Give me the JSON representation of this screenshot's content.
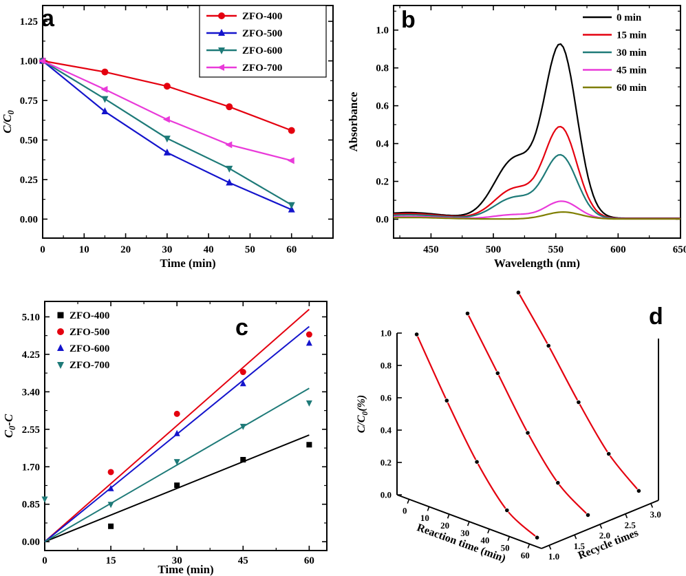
{
  "figure": {
    "background": "#ffffff",
    "description": "Four-panel photocatalytic degradation figure",
    "panel_labels": [
      "a",
      "b",
      "c",
      "d"
    ]
  },
  "chart_data": [
    {
      "panel": "a",
      "type": "line",
      "xlabel": "Time (min)",
      "ylabel": "C/C₀",
      "xlim": [
        0,
        70
      ],
      "ylim": [
        -0.12,
        1.35
      ],
      "xticks": [
        0,
        10,
        20,
        30,
        40,
        50,
        60
      ],
      "xtick_labels": [
        "0",
        "10",
        "20",
        "30",
        "40",
        "50",
        "60"
      ],
      "yticks": [
        0,
        0.25,
        0.5,
        0.75,
        1.0,
        1.25
      ],
      "ytick_labels": [
        "0.00",
        "0.25",
        "0.50",
        "0.75",
        "1.00",
        "1.25"
      ],
      "x": [
        0,
        15,
        30,
        45,
        60
      ],
      "legend_position": "top-right",
      "series": [
        {
          "name": "ZFO-400",
          "color": "#e4000f",
          "marker": "circle",
          "values": [
            1.0,
            0.93,
            0.84,
            0.71,
            0.56
          ]
        },
        {
          "name": "ZFO-500",
          "color": "#1414cc",
          "marker": "triangle-up",
          "values": [
            1.0,
            0.68,
            0.42,
            0.23,
            0.06
          ]
        },
        {
          "name": "ZFO-600",
          "color": "#1e7a78",
          "marker": "triangle-down",
          "values": [
            1.0,
            0.76,
            0.51,
            0.32,
            0.09
          ]
        },
        {
          "name": "ZFO-700",
          "color": "#e93ad9",
          "marker": "triangle-left",
          "values": [
            1.0,
            0.82,
            0.63,
            0.47,
            0.37
          ]
        }
      ]
    },
    {
      "panel": "b",
      "type": "line",
      "xlabel": "Wavelength (nm)",
      "ylabel": "Absorbance",
      "xlim": [
        420,
        650
      ],
      "ylim": [
        -0.1,
        1.13
      ],
      "xticks": [
        450,
        500,
        550,
        600,
        650
      ],
      "xtick_labels": [
        "450",
        "500",
        "550",
        "600",
        "650"
      ],
      "yticks": [
        0,
        0.2,
        0.4,
        0.6,
        0.8,
        1.0
      ],
      "ytick_labels": [
        "0.0",
        "0.2",
        "0.4",
        "0.6",
        "0.8",
        "1.0"
      ],
      "legend_position": "top-right",
      "peak_wavelength_nm": 554,
      "series": [
        {
          "name": "0 min",
          "color": "#000000",
          "baseline": 0.005,
          "peaks": [
            [
              554,
              0.9,
              13
            ],
            [
              517,
              0.31,
              16
            ],
            [
              432,
              0.03,
              26
            ]
          ]
        },
        {
          "name": "15 min",
          "color": "#e4000f",
          "baseline": 0.004,
          "peaks": [
            [
              554,
              0.475,
              13
            ],
            [
              517,
              0.155,
              16
            ],
            [
              432,
              0.025,
              26
            ]
          ]
        },
        {
          "name": "30 min",
          "color": "#1e7a78",
          "baseline": 0.003,
          "peaks": [
            [
              554,
              0.33,
              13
            ],
            [
              517,
              0.11,
              16
            ],
            [
              432,
              0.02,
              26
            ]
          ]
        },
        {
          "name": "45 min",
          "color": "#e93ad9",
          "baseline": 0.002,
          "peaks": [
            [
              555,
              0.092,
              13
            ],
            [
              517,
              0.022,
              16
            ],
            [
              432,
              0.012,
              26
            ]
          ]
        },
        {
          "name": "60 min",
          "color": "#7e7e00",
          "baseline": 0.001,
          "peaks": [
            [
              556,
              0.037,
              14
            ],
            [
              432,
              0.008,
              26
            ]
          ]
        }
      ]
    },
    {
      "panel": "c",
      "type": "scatter",
      "xlabel": "Time (min)",
      "ylabel": "C₀-C",
      "xlim": [
        0,
        64
      ],
      "ylim": [
        -0.2,
        5.45
      ],
      "xticks": [
        0,
        15,
        30,
        45,
        60
      ],
      "xtick_labels": [
        "0",
        "15",
        "30",
        "45",
        "60"
      ],
      "yticks": [
        0,
        0.85,
        1.7,
        2.55,
        3.4,
        4.25,
        5.1
      ],
      "ytick_labels": [
        "0.00",
        "0.85",
        "1.70",
        "2.55",
        "3.40",
        "4.25",
        "5.10"
      ],
      "legend_position": "top-left",
      "series": [
        {
          "name": "ZFO-400",
          "color": "#000000",
          "marker": "square",
          "points": [
            [
              15,
              0.35
            ],
            [
              30,
              1.28
            ],
            [
              45,
              1.86
            ],
            [
              60,
              2.2
            ]
          ],
          "fit_line": {
            "x": [
              0,
              60
            ],
            "y": [
              0,
              2.42
            ]
          }
        },
        {
          "name": "ZFO-500",
          "color": "#e4000f",
          "marker": "circle",
          "points": [
            [
              15,
              1.58
            ],
            [
              30,
              2.9
            ],
            [
              45,
              3.85
            ],
            [
              60,
              4.7
            ]
          ],
          "fit_line": {
            "x": [
              0,
              60
            ],
            "y": [
              0,
              5.27
            ]
          }
        },
        {
          "name": "ZFO-600",
          "color": "#1414cc",
          "marker": "triangle-up",
          "points": [
            [
              15,
              1.2
            ],
            [
              30,
              2.45
            ],
            [
              45,
              3.58
            ],
            [
              60,
              4.5
            ]
          ],
          "fit_line": {
            "x": [
              0,
              60
            ],
            "y": [
              0,
              4.88
            ]
          }
        },
        {
          "name": "ZFO-700",
          "color": "#1e7a78",
          "marker": "triangle-down",
          "points": [
            [
              0,
              0.97
            ],
            [
              15,
              0.85
            ],
            [
              30,
              1.82
            ],
            [
              45,
              2.62
            ],
            [
              60,
              3.15
            ]
          ],
          "fit_line": {
            "x": [
              0,
              60
            ],
            "y": [
              0,
              3.48
            ]
          }
        }
      ]
    },
    {
      "panel": "d",
      "type": "line3d",
      "xlabel": "Reaction time (min)",
      "ylabel": "Recycle times",
      "zlabel": "C/C₀(%)",
      "xlim": [
        0,
        60
      ],
      "ylim": [
        1.0,
        3.0
      ],
      "zlim": [
        0.0,
        1.0
      ],
      "xticks": [
        0,
        10,
        20,
        30,
        40,
        50,
        60
      ],
      "xtick_labels": [
        "0",
        "10",
        "20",
        "30",
        "40",
        "50",
        "60"
      ],
      "yticks": [
        1.0,
        1.5,
        2.0,
        2.5,
        3.0
      ],
      "ytick_labels": [
        "1.0",
        "1.5",
        "2.0",
        "2.5",
        "3.0"
      ],
      "zticks": [
        0,
        0.2,
        0.4,
        0.6,
        0.8,
        1.0
      ],
      "ztick_labels": [
        "0.0",
        "0.2",
        "0.4",
        "0.6",
        "0.8",
        "1.0"
      ],
      "times": [
        0,
        15,
        30,
        45,
        60
      ],
      "line_color": "#e4000f",
      "point_color": "#000000",
      "runs": [
        {
          "recycle": 1,
          "values": [
            1.0,
            0.66,
            0.35,
            0.12,
            0.02
          ]
        },
        {
          "recycle": 2,
          "values": [
            1.0,
            0.7,
            0.4,
            0.16,
            0.03
          ]
        },
        {
          "recycle": 3,
          "values": [
            1.0,
            0.74,
            0.46,
            0.21,
            0.05
          ]
        }
      ]
    }
  ]
}
